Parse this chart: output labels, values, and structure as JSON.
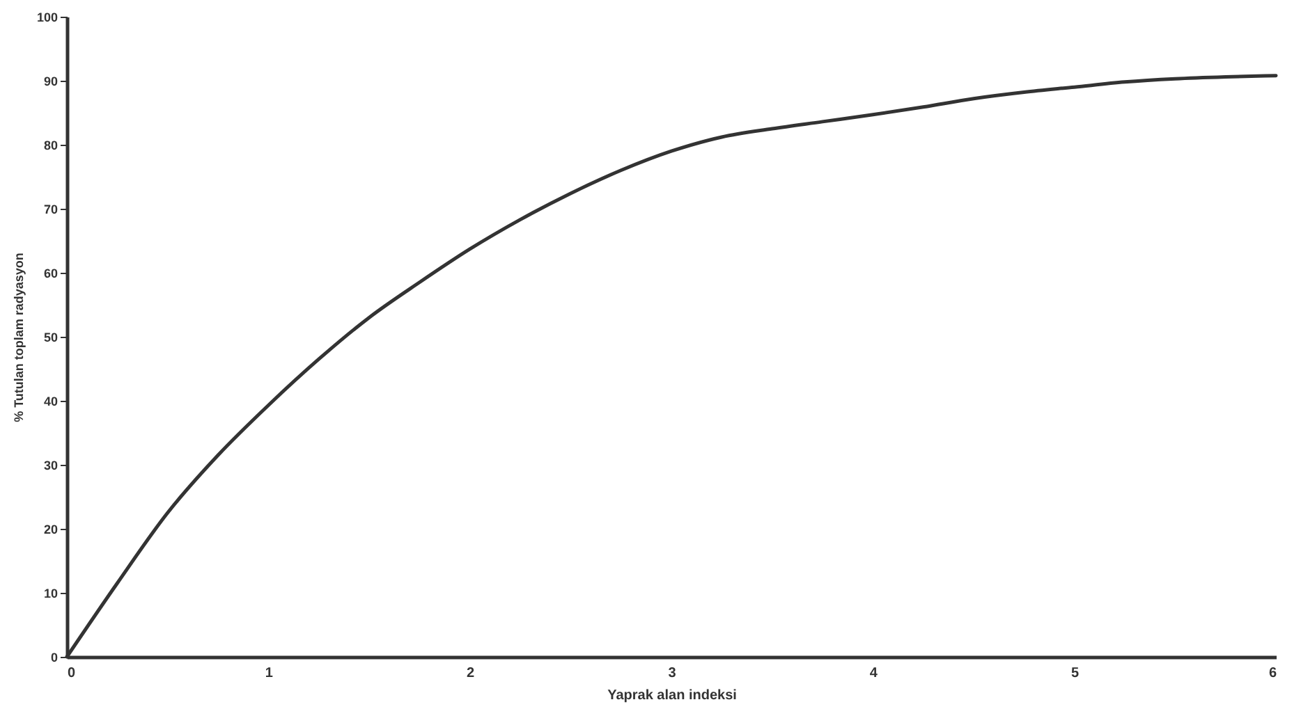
{
  "chart_data": {
    "type": "line",
    "xlabel": "Yaprak alan indeksi",
    "ylabel": "% Tutulan toplam radyasyon",
    "x": [
      0,
      0.25,
      0.5,
      0.75,
      1,
      1.25,
      1.5,
      1.75,
      2,
      2.25,
      2.5,
      2.75,
      3,
      3.25,
      3.5,
      3.75,
      4,
      4.25,
      4.5,
      4.75,
      5,
      5.25,
      5.5,
      5.75,
      6
    ],
    "series": [
      {
        "color": "#333333",
        "values": [
          0,
          11.5,
          22.5,
          31.5,
          39.3,
          46.5,
          53,
          58.5,
          63.7,
          68.3,
          72.4,
          76,
          79,
          81.2,
          82.5,
          83.6,
          84.7,
          85.9,
          87.2,
          88.2,
          89,
          89.8,
          90.3,
          90.6,
          90.8
        ]
      }
    ],
    "xlim": [
      0,
      6
    ],
    "xticks": [
      0,
      1,
      2,
      3,
      4,
      5,
      6
    ],
    "ylim": [
      0,
      100
    ],
    "yticks": [
      0,
      10,
      20,
      30,
      40,
      50,
      60,
      70,
      80,
      90,
      100
    ],
    "grid": false,
    "legend": false,
    "marker": "none",
    "line_style": "solid"
  }
}
